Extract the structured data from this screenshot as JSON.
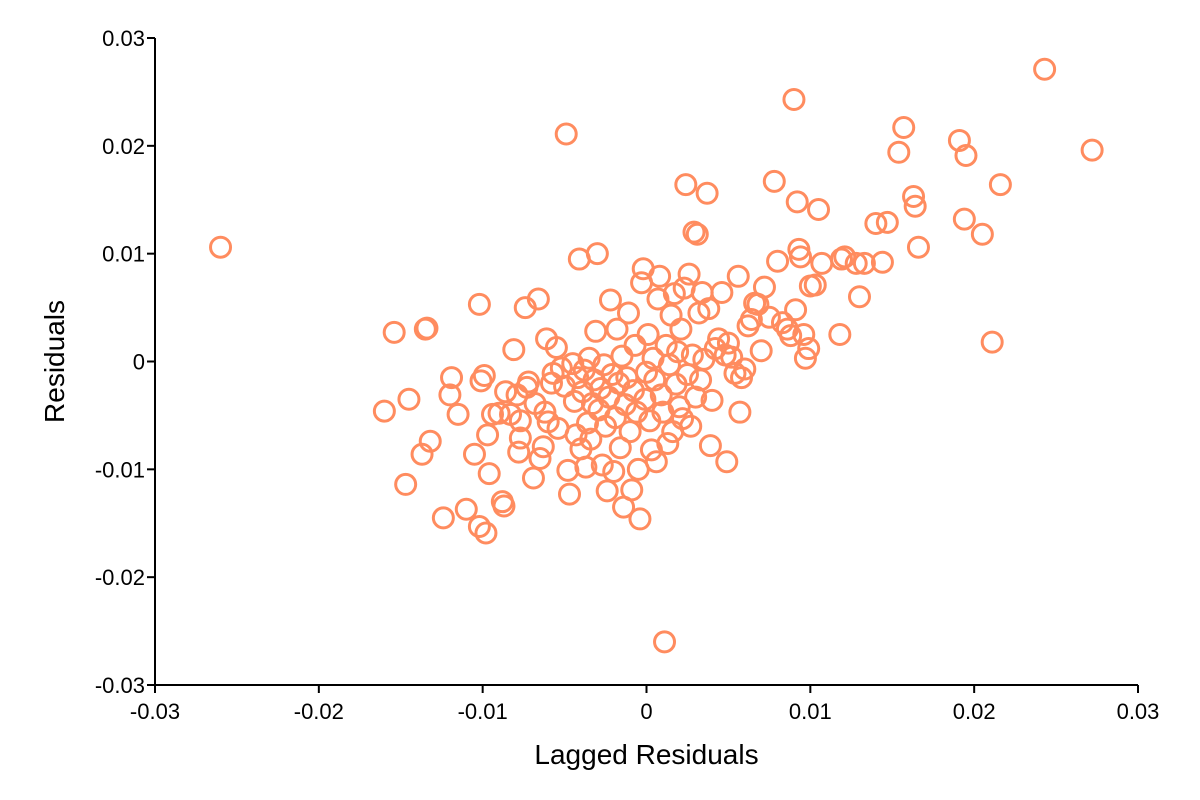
{
  "chart_data": {
    "type": "scatter",
    "title": "",
    "xlabel": "Lagged Residuals",
    "ylabel": "Residuals",
    "xlim": [
      -0.03,
      0.03
    ],
    "ylim": [
      -0.03,
      0.03
    ],
    "xticks": [
      -0.03,
      -0.02,
      -0.01,
      0,
      0.01,
      0.02,
      0.03
    ],
    "yticks": [
      -0.03,
      -0.02,
      -0.01,
      0,
      0.01,
      0.02,
      0.03
    ],
    "xtick_labels": [
      "-0.03",
      "-0.02",
      "-0.01",
      "0",
      "0.01",
      "0.02",
      "0.03"
    ],
    "ytick_labels": [
      "-0.03",
      "-0.02",
      "-0.01",
      "0",
      "0.01",
      "0.02",
      "0.03"
    ],
    "grid": false,
    "legend": "none",
    "marker": "open-circle",
    "color": "#FF8C5F",
    "points": [
      [
        -0.026,
        0.0106
      ],
      [
        -0.016,
        -0.0046
      ],
      [
        -0.0154,
        0.0027
      ],
      [
        -0.0147,
        -0.0114
      ],
      [
        -0.0145,
        -0.0035
      ],
      [
        -0.0137,
        -0.0086
      ],
      [
        -0.0135,
        0.003
      ],
      [
        -0.0134,
        0.0031
      ],
      [
        -0.0132,
        -0.0074
      ],
      [
        -0.0124,
        -0.0145
      ],
      [
        -0.012,
        -0.0031
      ],
      [
        -0.0119,
        -0.0015
      ],
      [
        -0.0115,
        -0.0049
      ],
      [
        -0.011,
        -0.0137
      ],
      [
        -0.0105,
        -0.0086
      ],
      [
        -0.0102,
        0.0053
      ],
      [
        -0.0102,
        -0.0153
      ],
      [
        -0.0101,
        -0.0018
      ],
      [
        -0.0099,
        -0.0013
      ],
      [
        -0.0098,
        -0.0159
      ],
      [
        -0.0097,
        -0.0068
      ],
      [
        -0.0096,
        -0.0104
      ],
      [
        -0.0094,
        -0.0049
      ],
      [
        -0.009,
        -0.0048
      ],
      [
        -0.0088,
        -0.013
      ],
      [
        -0.0087,
        -0.0134
      ],
      [
        -0.0086,
        -0.0028
      ],
      [
        -0.0083,
        -0.0049
      ],
      [
        -0.0081,
        0.0011
      ],
      [
        -0.0079,
        -0.0031
      ],
      [
        -0.0078,
        -0.0084
      ],
      [
        -0.0077,
        -0.0055
      ],
      [
        -0.0077,
        -0.0071
      ],
      [
        -0.0074,
        0.005
      ],
      [
        -0.0073,
        -0.0024
      ],
      [
        -0.0072,
        -0.0019
      ],
      [
        -0.0069,
        -0.0108
      ],
      [
        -0.0068,
        -0.0039
      ],
      [
        -0.0066,
        0.0058
      ],
      [
        -0.0065,
        -0.009
      ],
      [
        -0.0063,
        -0.0079
      ],
      [
        -0.0062,
        -0.0047
      ],
      [
        -0.0061,
        0.0021
      ],
      [
        -0.006,
        -0.0056
      ],
      [
        -0.0058,
        -0.002
      ],
      [
        -0.0057,
        -0.0011
      ],
      [
        -0.0055,
        0.0013
      ],
      [
        -0.0054,
        -0.0062
      ],
      [
        -0.0052,
        -0.0006
      ],
      [
        -0.005,
        -0.0023
      ],
      [
        -0.0049,
        0.0211
      ],
      [
        -0.0048,
        -0.0101
      ],
      [
        -0.0047,
        -0.0123
      ],
      [
        -0.0045,
        -0.0002
      ],
      [
        -0.0044,
        -0.0037
      ],
      [
        -0.0043,
        -0.0068
      ],
      [
        -0.0042,
        -0.0015
      ],
      [
        -0.0041,
        0.0095
      ],
      [
        -0.004,
        -0.0081
      ],
      [
        -0.0039,
        -0.0028
      ],
      [
        -0.0038,
        -0.0008
      ],
      [
        -0.0037,
        -0.0098
      ],
      [
        -0.0036,
        -0.0057
      ],
      [
        -0.0035,
        0.0003
      ],
      [
        -0.0034,
        -0.0072
      ],
      [
        -0.0033,
        -0.0039
      ],
      [
        -0.0032,
        -0.0017
      ],
      [
        -0.0031,
        0.0028
      ],
      [
        -0.003,
        0.01
      ],
      [
        -0.0029,
        -0.0045
      ],
      [
        -0.0028,
        -0.0025
      ],
      [
        -0.0027,
        -0.0096
      ],
      [
        -0.0026,
        -0.0003
      ],
      [
        -0.0025,
        -0.006
      ],
      [
        -0.0024,
        -0.012
      ],
      [
        -0.0023,
        -0.0033
      ],
      [
        -0.0022,
        0.0057
      ],
      [
        -0.0021,
        -0.0012
      ],
      [
        -0.002,
        -0.0102
      ],
      [
        -0.0019,
        -0.0052
      ],
      [
        -0.0018,
        0.003
      ],
      [
        -0.0017,
        -0.002
      ],
      [
        -0.0016,
        -0.008
      ],
      [
        -0.0015,
        0.0005
      ],
      [
        -0.0014,
        -0.0135
      ],
      [
        -0.0013,
        -0.004
      ],
      [
        -0.0012,
        -0.0015
      ],
      [
        -0.0011,
        0.0045
      ],
      [
        -0.001,
        -0.0065
      ],
      [
        -0.0009,
        -0.0119
      ],
      [
        -0.0008,
        -0.0027
      ],
      [
        -0.0007,
        0.0015
      ],
      [
        -0.0006,
        -0.0047
      ],
      [
        -0.0005,
        -0.01
      ],
      [
        -0.0004,
        -0.0146
      ],
      [
        -0.0003,
        0.0073
      ],
      [
        -0.0002,
        0.0086
      ],
      [
        -0.0001,
        -0.0035
      ],
      [
        0.0,
        -0.001
      ],
      [
        0.0001,
        0.0025
      ],
      [
        0.0002,
        -0.0055
      ],
      [
        0.0003,
        -0.0082
      ],
      [
        0.0004,
        0.0003
      ],
      [
        0.0005,
        -0.0017
      ],
      [
        0.0006,
        -0.0093
      ],
      [
        0.0007,
        0.0058
      ],
      [
        0.0008,
        0.0079
      ],
      [
        0.0009,
        -0.0031
      ],
      [
        0.001,
        -0.0047
      ],
      [
        0.0011,
        -0.026
      ],
      [
        0.0012,
        0.0015
      ],
      [
        0.0013,
        -0.0076
      ],
      [
        0.0014,
        -0.0003
      ],
      [
        0.0015,
        0.0043
      ],
      [
        0.0016,
        -0.0065
      ],
      [
        0.0017,
        0.0063
      ],
      [
        0.0018,
        -0.0021
      ],
      [
        0.0019,
        0.0009
      ],
      [
        0.002,
        -0.0042
      ],
      [
        0.0021,
        0.003
      ],
      [
        0.0022,
        -0.0053
      ],
      [
        0.0023,
        0.0068
      ],
      [
        0.0024,
        0.0164
      ],
      [
        0.0025,
        -0.0012
      ],
      [
        0.0026,
        0.0081
      ],
      [
        0.0027,
        -0.006
      ],
      [
        0.0028,
        0.0006
      ],
      [
        0.0029,
        0.012
      ],
      [
        0.003,
        -0.0033
      ],
      [
        0.0031,
        0.0118
      ],
      [
        0.0032,
        0.0045
      ],
      [
        0.0033,
        -0.0017
      ],
      [
        0.0034,
        0.0064
      ],
      [
        0.0035,
        0.0002
      ],
      [
        0.0037,
        0.0156
      ],
      [
        0.0038,
        0.0049
      ],
      [
        0.0039,
        -0.0078
      ],
      [
        0.004,
        -0.0036
      ],
      [
        0.0042,
        0.0012
      ],
      [
        0.0044,
        0.0021
      ],
      [
        0.0046,
        0.0064
      ],
      [
        0.0048,
        0.0006
      ],
      [
        0.0049,
        -0.0093
      ],
      [
        0.005,
        0.0017
      ],
      [
        0.0052,
        0.0004
      ],
      [
        0.0054,
        -0.0011
      ],
      [
        0.0056,
        0.0079
      ],
      [
        0.0057,
        -0.0047
      ],
      [
        0.0058,
        -0.0015
      ],
      [
        0.006,
        -0.0007
      ],
      [
        0.0062,
        0.0033
      ],
      [
        0.0064,
        0.0039
      ],
      [
        0.0066,
        0.0054
      ],
      [
        0.0068,
        0.0053
      ],
      [
        0.007,
        0.001
      ],
      [
        0.0072,
        0.0069
      ],
      [
        0.0075,
        0.0041
      ],
      [
        0.0078,
        0.0167
      ],
      [
        0.008,
        0.0093
      ],
      [
        0.0083,
        0.0036
      ],
      [
        0.0086,
        0.003
      ],
      [
        0.0088,
        0.0024
      ],
      [
        0.009,
        0.0243
      ],
      [
        0.0091,
        0.0048
      ],
      [
        0.0092,
        0.0148
      ],
      [
        0.0093,
        0.0104
      ],
      [
        0.0094,
        0.0097
      ],
      [
        0.0096,
        0.0025
      ],
      [
        0.0097,
        0.0003
      ],
      [
        0.0099,
        0.0012
      ],
      [
        0.01,
        0.007
      ],
      [
        0.0103,
        0.0071
      ],
      [
        0.0105,
        0.0141
      ],
      [
        0.0107,
        0.0091
      ],
      [
        0.0118,
        0.0025
      ],
      [
        0.0119,
        0.0095
      ],
      [
        0.0121,
        0.0097
      ],
      [
        0.0128,
        0.0091
      ],
      [
        0.013,
        0.006
      ],
      [
        0.0133,
        0.0091
      ],
      [
        0.014,
        0.0128
      ],
      [
        0.0144,
        0.0092
      ],
      [
        0.0147,
        0.0129
      ],
      [
        0.0154,
        0.0194
      ],
      [
        0.0157,
        0.0217
      ],
      [
        0.0163,
        0.0153
      ],
      [
        0.0164,
        0.0144
      ],
      [
        0.0166,
        0.0106
      ],
      [
        0.0191,
        0.0205
      ],
      [
        0.0194,
        0.0132
      ],
      [
        0.0195,
        0.0191
      ],
      [
        0.0205,
        0.0118
      ],
      [
        0.0211,
        0.0018
      ],
      [
        0.0216,
        0.0164
      ],
      [
        0.0243,
        0.0271
      ],
      [
        0.0272,
        0.0196
      ]
    ]
  }
}
